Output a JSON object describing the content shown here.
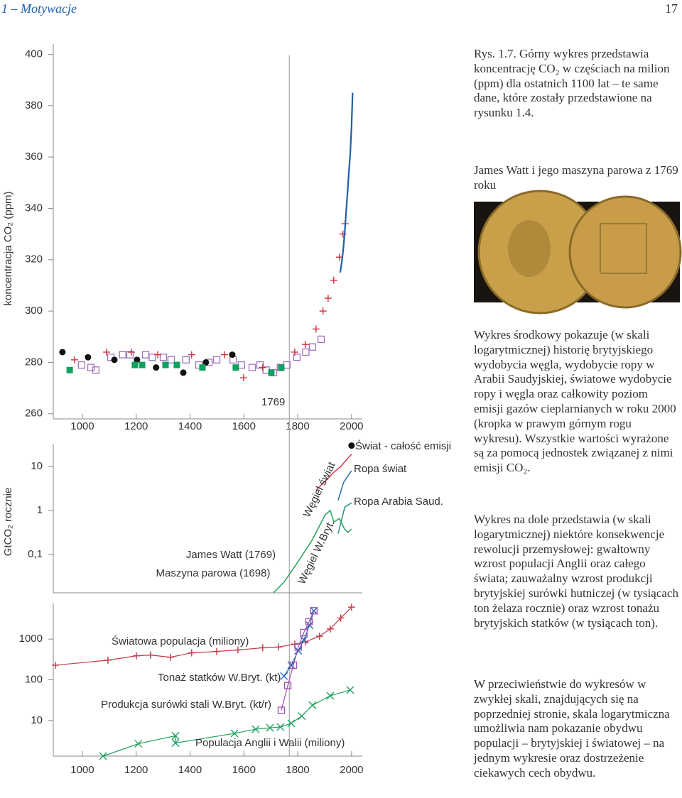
{
  "header": {
    "section": "1 – Motywacje",
    "page": 17
  },
  "caption": "Rys. 1.7. Górny wykres przedstawia koncentrację CO₂ w częściach na milion (ppm) dla ostatnich 1100 lat – te same dane, które zostały przedstawione na rysunku 1.4.",
  "photo_caption": "James Watt i jego maszyna parowa z 1769 roku",
  "paragraphs": [
    "Wykres środkowy pokazuje (w skali logarytmicznej) historię brytyjskiego wydobycia węgla, wydobycie ropy w Arabii Saudyjskiej, światowe wydobycie ropy i węgla oraz całkowity poziom emisji gazów cieplarnianych w roku 2000 (kropka w prawym górnym rogu wykresu). Wszystkie wartości wyrażone są za pomocą jednostek związanej z nimi emisji CO₂.",
    "Wykres na dole przedstawia (w skali logarytmicznej) niektóre konsekwencje rewolucji przemysłowej: gwałtowny wzrost populacji Anglii oraz całego świata; zauważalny wzrost produkcji brytyjskiej surówki hutniczej (w tysiącach ton żelaza rocznie) oraz wzrost tonażu brytyjskich statków (w tysiącach ton).",
    "W przeciwieństwie do wykresów w zwykłej skali, znajdujących się na poprzedniej stronie, skala logarytmiczna umożliwia nam pokazanie obydwu populacji – brytyjskiej i światowej – na jednym wykresie oraz dostrzeżenie ciekawych cech obydwu."
  ],
  "chart_data": [
    {
      "type": "scatter",
      "ylabel": "koncentracja CO₂ (ppm)",
      "xlim": [
        892,
        2040
      ],
      "xticks": [
        1000,
        1200,
        1400,
        1600,
        1800,
        2000
      ],
      "ylim": [
        258,
        404
      ],
      "yticks": [
        260,
        280,
        300,
        320,
        340,
        360,
        380,
        400
      ],
      "vline": 1769,
      "series": [
        {
          "color": "#a070c0",
          "marker": "open-square",
          "x": [
            997,
            1032,
            1050,
            1106,
            1150,
            1177,
            1235,
            1260,
            1301,
            1330,
            1385,
            1433,
            1470,
            1499,
            1560,
            1591,
            1631,
            1660,
            1683,
            1710,
            1736,
            1760,
            1797,
            1830,
            1855,
            1887
          ],
          "values": [
            279,
            278,
            277,
            282,
            283,
            283,
            283,
            282,
            282,
            281,
            281,
            279,
            280,
            281,
            281,
            279,
            278,
            279,
            277,
            276,
            278,
            279,
            282,
            284,
            286,
            289
          ]
        },
        {
          "color": "#d03040",
          "marker": "plus",
          "x": [
            971,
            1090,
            1182,
            1280,
            1406,
            1528,
            1599,
            1670,
            1789,
            1829,
            1868,
            1894,
            1913,
            1934,
            1955,
            1968,
            1976
          ],
          "values": [
            281,
            284,
            284,
            283,
            283,
            283,
            274,
            278,
            284,
            287,
            293,
            300,
            305,
            312,
            321,
            330,
            334
          ]
        },
        {
          "color": "#111111",
          "marker": "circle",
          "x": [
            926,
            1021,
            1119,
            1203,
            1274,
            1375,
            1459,
            1557
          ],
          "values": [
            284,
            282,
            281,
            281,
            278,
            276,
            280,
            283
          ]
        },
        {
          "color": "#10a060",
          "marker": "square",
          "x": [
            953,
            1195,
            1222,
            1309,
            1351,
            1446,
            1570,
            1702,
            1739
          ],
          "values": [
            277,
            279,
            279,
            279,
            279,
            278,
            278,
            276,
            278
          ]
        },
        {
          "color": "#1f5fa8",
          "marker": "line",
          "x": [
            1958,
            1965,
            1970,
            1975,
            1980,
            1985,
            1990,
            1995,
            2000,
            2004
          ],
          "values": [
            315,
            320,
            325,
            331,
            339,
            346,
            354,
            361,
            372,
            385
          ]
        }
      ]
    },
    {
      "type": "line",
      "ylabel": "GtCO₂ rocznie",
      "log_scale": true,
      "xlim": [
        892,
        2040
      ],
      "ylim": [
        0.0135,
        33
      ],
      "yticks": [
        {
          "value": 0.1,
          "label": "0,1"
        },
        1,
        10
      ],
      "annotations": [
        "James Watt (1769)",
        "Maszyna parowa (1698)"
      ],
      "series": [
        {
          "name": "Węgiel świat",
          "color": "#c0394a",
          "marker": "line",
          "x": [
            1868,
            1900,
            1934,
            1960,
            1980,
            2000
          ],
          "values": [
            2.9,
            4.5,
            7.4,
            10,
            14,
            19
          ]
        },
        {
          "name": "Ropa świat",
          "color": "#2a6fa8",
          "marker": "line",
          "x": [
            1950,
            1970,
            1990,
            2000
          ],
          "values": [
            1.7,
            4.3,
            6.6,
            8
          ]
        },
        {
          "name": "Ropa Arabia Saud.",
          "color": "#2a8a8a",
          "marker": "line",
          "x": [
            1950,
            1975,
            2000
          ],
          "values": [
            0.3,
            1.2,
            1.5
          ]
        },
        {
          "name": "Węgiel W.Bryt.",
          "color": "#27a35a",
          "marker": "line",
          "x": [
            1710,
            1750,
            1802,
            1855,
            1902,
            1921,
            1934,
            1955,
            1974,
            1987,
            2000
          ],
          "values": [
            0.0135,
            0.024,
            0.07,
            0.22,
            0.8,
            1.0,
            0.55,
            0.66,
            0.38,
            0.32,
            0.38
          ]
        },
        {
          "name": "Świat - całość emisji",
          "color": "#111111",
          "marker": "circle",
          "x": [
            2000
          ],
          "values": [
            30
          ]
        }
      ]
    },
    {
      "type": "line",
      "log_scale": true,
      "xlim": [
        892,
        2040
      ],
      "xticks": [
        1000,
        1200,
        1400,
        1600,
        1800,
        2000
      ],
      "ylim": [
        1.33,
        7500
      ],
      "yticks": [
        10,
        100,
        1000
      ],
      "series": [
        {
          "name": "Światowa populacja (miliony)",
          "color": "#c0394a",
          "marker": "plus",
          "connected": true,
          "x": [
            900,
            1095,
            1201,
            1253,
            1327,
            1406,
            1499,
            1578,
            1670,
            1728,
            1789,
            1828,
            1881,
            1921,
            1960,
            2000
          ],
          "values": [
            228,
            303,
            388,
            405,
            358,
            458,
            497,
            540,
            611,
            637,
            750,
            849,
            1178,
            1778,
            3296,
            6105
          ]
        },
        {
          "name": "Tonaż statków W.Bryt. (kt)",
          "color": "#2060b0",
          "marker": "x",
          "connected": true,
          "x": [
            1749,
            1776,
            1802,
            1823,
            1844,
            1860
          ],
          "values": [
            123,
            228,
            518,
            960,
            2182,
            4966
          ]
        },
        {
          "name": "Produkcja surówki stali W.Bryt. (kt/r)",
          "color": "#a050b0",
          "marker": "open-square",
          "connected": true,
          "x": [
            1739,
            1763,
            1784,
            1802,
            1823,
            1842,
            1860
          ],
          "values": [
            17.8,
            72,
            228,
            637,
            1449,
            2683,
            4966
          ]
        },
        {
          "name": "Populacja Anglii i Walii (miliony)",
          "color": "#20a060",
          "marker": "x",
          "connected": true,
          "x": [
            1077,
            1208,
            1346,
            1346,
            1565,
            1644,
            1697,
            1736,
            1776,
            1815,
            1855,
            1921,
            1995
          ],
          "values": [
            1.33,
            2.68,
            4.2,
            2.8,
            4.8,
            6.1,
            6.6,
            6.9,
            8.5,
            12.8,
            23.7,
            40.5,
            56
          ]
        }
      ]
    }
  ]
}
